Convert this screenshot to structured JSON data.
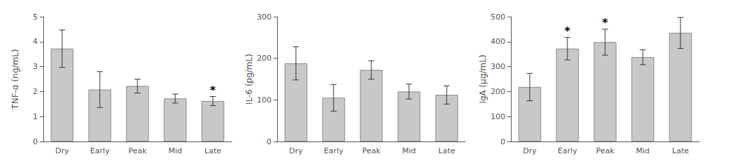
{
  "chart_data": [
    {
      "type": "bar",
      "ylabel": "TNF-α (ng/mL)",
      "categories": [
        "Dry",
        "Early",
        "Peak",
        "Mid",
        "Late"
      ],
      "values": [
        3.72,
        2.08,
        2.22,
        1.72,
        1.62
      ],
      "errors": [
        0.75,
        0.72,
        0.28,
        0.18,
        0.18
      ],
      "annotations": [
        {
          "x": "Late",
          "text": "*"
        }
      ],
      "color": "#c8c8c8",
      "ylim": [
        0,
        5
      ],
      "yticks": [
        0,
        1,
        2,
        3,
        4,
        5
      ],
      "grid": false
    },
    {
      "type": "bar",
      "ylabel": "IL-6 (pg/mL)",
      "categories": [
        "Dry",
        "Early",
        "Peak",
        "Mid",
        "Late"
      ],
      "values": [
        188,
        105,
        172,
        120,
        112
      ],
      "errors": [
        40,
        32,
        22,
        18,
        22
      ],
      "annotations": [],
      "color": "#c8c8c8",
      "ylim": [
        0,
        300
      ],
      "yticks": [
        0,
        100,
        200,
        300
      ],
      "grid": false
    },
    {
      "type": "bar",
      "ylabel": "IgA (μg/mL)",
      "categories": [
        "Dry",
        "Early",
        "Peak",
        "Mid",
        "Late"
      ],
      "values": [
        218,
        372,
        398,
        338,
        435
      ],
      "errors": [
        55,
        45,
        52,
        30,
        62
      ],
      "annotations": [
        {
          "x": "Early",
          "text": "*"
        },
        {
          "x": "Peak",
          "text": "*"
        }
      ],
      "color": "#c8c8c8",
      "ylim": [
        0,
        500
      ],
      "yticks": [
        0,
        100,
        200,
        300,
        400,
        500
      ],
      "grid": false
    }
  ]
}
